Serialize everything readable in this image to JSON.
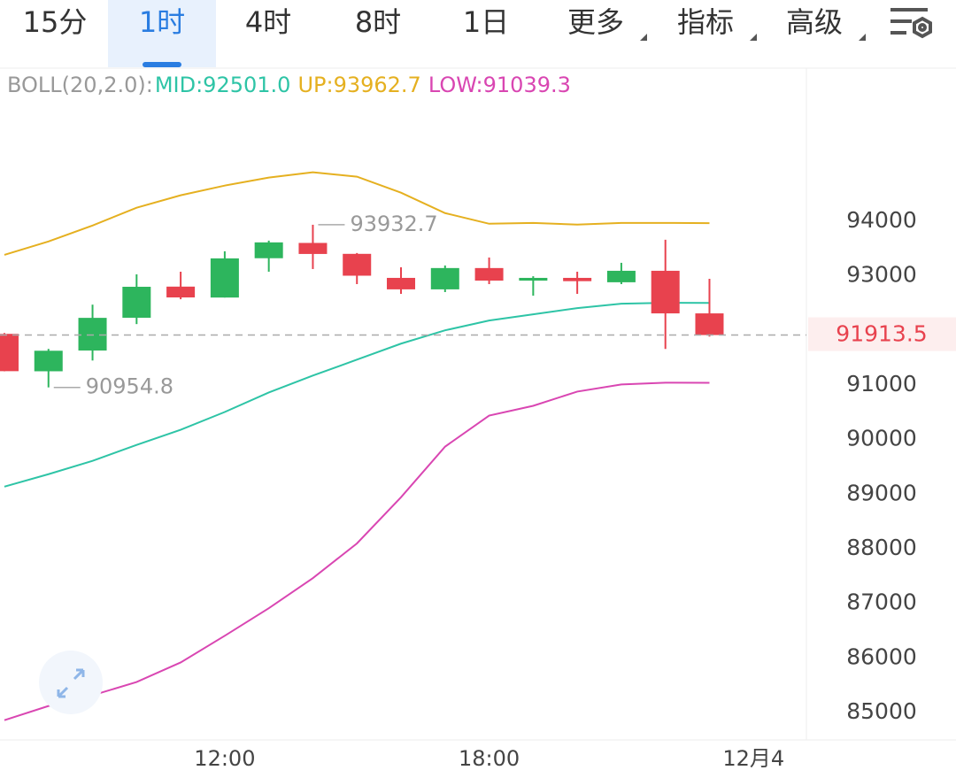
{
  "tabs": [
    "15分",
    "1时",
    "4时",
    "8时",
    "1日",
    "更多",
    "指标",
    "高级"
  ],
  "selected_tab": 1,
  "chart_data": {
    "type": "candlestick",
    "x": [
      7,
      8,
      9,
      10,
      11,
      12,
      13,
      14,
      15,
      16,
      17,
      18,
      19,
      20,
      21,
      22,
      23
    ],
    "open": [
      91935,
      91250,
      91630,
      92230,
      92800,
      92600,
      93320,
      93600,
      93400,
      92960,
      92750,
      93140,
      92910,
      92960,
      92880,
      93090,
      92310
    ],
    "high": [
      91950,
      91660,
      92470,
      93025,
      93073,
      93447,
      93642,
      93932.7,
      93415,
      93154,
      93187,
      93333,
      92990,
      93073,
      93236,
      93659,
      92943
    ],
    "low": [
      91250,
      90954.8,
      91447,
      92114,
      92569,
      92600,
      93073,
      93122,
      92846,
      92667,
      92700,
      92846,
      92634,
      92667,
      92846,
      91659,
      91886
    ],
    "close": [
      91252,
      91626,
      92228,
      92797,
      92602,
      93317,
      93610,
      93398,
      93000,
      92750,
      93140,
      92910,
      92960,
      92900,
      93090,
      92310,
      91913.5
    ],
    "up_color": "#2db55d",
    "down_color": "#e8424e",
    "max_index": 7,
    "min_index": 1,
    "indicator": {
      "label": "BOLL(20,2.0):",
      "series": [
        {
          "name": "MID:92501.0",
          "color": "#2ec4a6",
          "values": [
            89138,
            89366,
            89610,
            89902,
            90179,
            90504,
            90862,
            91171,
            91463,
            91756,
            92000,
            92179,
            92293,
            92407,
            92488,
            92504,
            92501.0
          ]
        },
        {
          "name": "UP:93962.7",
          "color": "#e5b020",
          "values": [
            93382,
            93626,
            93919,
            94244,
            94472,
            94650,
            94797,
            94894,
            94813,
            94520,
            94146,
            93951,
            93967,
            93935,
            93967,
            93967,
            93962.7
          ]
        },
        {
          "name": "LOW:91039.3",
          "color": "#d946b2",
          "values": [
            84862,
            85122,
            85317,
            85561,
            85919,
            86407,
            86911,
            87463,
            88098,
            88943,
            89870,
            90439,
            90618,
            90878,
            91008,
            91041,
            91039.3
          ]
        }
      ]
    },
    "xlim": [
      6.9,
      25.2
    ],
    "xticks": [
      {
        "value": 12,
        "label": "12:00"
      },
      {
        "value": 18,
        "label": "18:00"
      },
      {
        "value": 24,
        "label": "12月4"
      }
    ],
    "ylim": [
      84500,
      96800
    ],
    "yticks": [
      85000,
      86000,
      87000,
      88000,
      89000,
      90000,
      91000,
      93000,
      94000
    ]
  }
}
